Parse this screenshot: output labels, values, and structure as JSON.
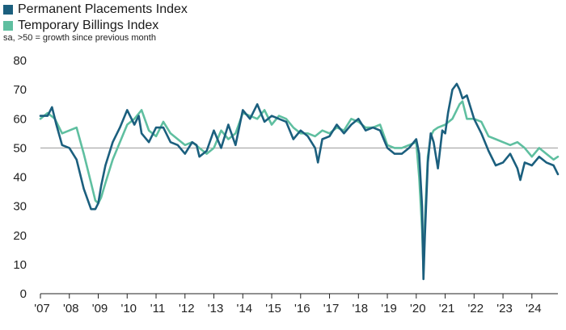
{
  "chart_data": {
    "type": "line",
    "title": "",
    "note": "sa, >50 = growth since previous month",
    "xlabel": "",
    "ylabel": "",
    "ylim": [
      0,
      80
    ],
    "yticks": [
      "0",
      "10",
      "20",
      "30",
      "40",
      "50",
      "60",
      "70",
      "80"
    ],
    "xticks": [
      "'07",
      "'08",
      "'09",
      "'10",
      "'11",
      "'12",
      "'13",
      "'14",
      "'15",
      "'16",
      "'17",
      "'18",
      "'19",
      "'20",
      "'21",
      "'22",
      "'23",
      "'24"
    ],
    "x_start_year": 2007,
    "reference_line": 50,
    "legend_position": "top-left",
    "series": [
      {
        "name": "Permanent Placements Index",
        "color": "#1b5f7e",
        "x": [
          2007.0,
          2007.25,
          2007.4,
          2007.55,
          2007.75,
          2008.0,
          2008.25,
          2008.5,
          2008.75,
          2008.9,
          2009.0,
          2009.1,
          2009.25,
          2009.5,
          2009.75,
          2010.0,
          2010.25,
          2010.4,
          2010.5,
          2010.75,
          2011.0,
          2011.25,
          2011.5,
          2011.75,
          2012.0,
          2012.25,
          2012.4,
          2012.5,
          2012.75,
          2013.0,
          2013.25,
          2013.5,
          2013.75,
          2014.0,
          2014.25,
          2014.5,
          2014.75,
          2015.0,
          2015.25,
          2015.5,
          2015.75,
          2016.0,
          2016.25,
          2016.5,
          2016.6,
          2016.75,
          2017.0,
          2017.25,
          2017.5,
          2017.75,
          2018.0,
          2018.25,
          2018.5,
          2018.75,
          2019.0,
          2019.25,
          2019.5,
          2019.75,
          2020.0,
          2020.1,
          2020.2,
          2020.25,
          2020.3,
          2020.4,
          2020.5,
          2020.6,
          2020.75,
          2020.9,
          2021.0,
          2021.1,
          2021.25,
          2021.4,
          2021.5,
          2021.6,
          2021.75,
          2022.0,
          2022.25,
          2022.5,
          2022.75,
          2023.0,
          2023.25,
          2023.5,
          2023.6,
          2023.75,
          2024.0,
          2024.25,
          2024.5,
          2024.75,
          2024.9
        ],
        "values": [
          61,
          61,
          64,
          58,
          51,
          50,
          46,
          36,
          29,
          29,
          31,
          37,
          44,
          52,
          57,
          63,
          58,
          61,
          55,
          52,
          57,
          57,
          52,
          51,
          48,
          52,
          51,
          47,
          49,
          56,
          50,
          58,
          51,
          63,
          60,
          65,
          59,
          61,
          60,
          59,
          53,
          56,
          54,
          50,
          45,
          53,
          54,
          58,
          55,
          58,
          60,
          56,
          57,
          56,
          50,
          48,
          48,
          50,
          53,
          48,
          30,
          5,
          20,
          45,
          55,
          52,
          43,
          56,
          55,
          62,
          70,
          72,
          70,
          67,
          68,
          60,
          55,
          49,
          44,
          45,
          48,
          43,
          39,
          45,
          44,
          47,
          45,
          44,
          41
        ]
      },
      {
        "name": "Temporary Billings Index",
        "color": "#5fbfa0",
        "x": [
          2007.0,
          2007.25,
          2007.5,
          2007.75,
          2008.0,
          2008.25,
          2008.5,
          2008.75,
          2008.9,
          2009.0,
          2009.1,
          2009.25,
          2009.5,
          2009.75,
          2010.0,
          2010.25,
          2010.5,
          2010.75,
          2011.0,
          2011.25,
          2011.5,
          2011.75,
          2012.0,
          2012.25,
          2012.5,
          2012.75,
          2013.0,
          2013.25,
          2013.5,
          2013.75,
          2014.0,
          2014.25,
          2014.5,
          2014.75,
          2015.0,
          2015.25,
          2015.5,
          2015.75,
          2016.0,
          2016.25,
          2016.5,
          2016.75,
          2017.0,
          2017.25,
          2017.5,
          2017.75,
          2018.0,
          2018.25,
          2018.5,
          2018.75,
          2019.0,
          2019.25,
          2019.5,
          2019.75,
          2020.0,
          2020.1,
          2020.2,
          2020.25,
          2020.3,
          2020.4,
          2020.5,
          2020.6,
          2020.75,
          2021.0,
          2021.25,
          2021.5,
          2021.6,
          2021.75,
          2022.0,
          2022.25,
          2022.5,
          2022.75,
          2023.0,
          2023.25,
          2023.5,
          2023.75,
          2024.0,
          2024.25,
          2024.5,
          2024.75,
          2024.9
        ],
        "values": [
          60,
          62,
          60,
          55,
          56,
          57,
          48,
          38,
          32,
          31,
          33,
          38,
          46,
          52,
          58,
          60,
          63,
          56,
          54,
          59,
          55,
          53,
          51,
          52,
          50,
          48,
          50,
          56,
          53,
          55,
          62,
          61,
          60,
          63,
          58,
          61,
          60,
          57,
          55,
          55,
          54,
          56,
          55,
          57,
          56,
          60,
          59,
          57,
          57,
          58,
          51,
          50,
          50,
          51,
          52,
          40,
          22,
          8,
          25,
          47,
          54,
          56,
          57,
          58,
          60,
          65,
          66,
          60,
          60,
          59,
          54,
          53,
          52,
          51,
          52,
          50,
          47,
          50,
          48,
          46,
          47
        ]
      }
    ]
  }
}
